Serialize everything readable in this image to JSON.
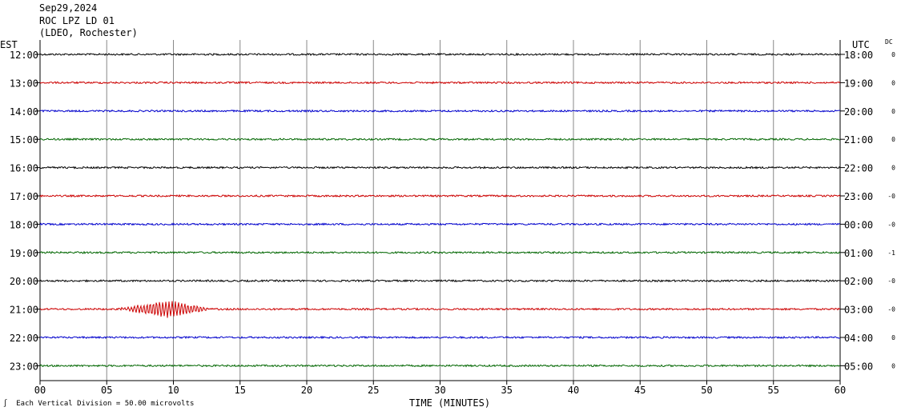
{
  "header": {
    "date": "Sep29,2024",
    "station": "ROC LPZ LD 01",
    "network": "(LDEO, Rochester)"
  },
  "left_zone": "EST",
  "right_zone": "UTC",
  "dc_label": "DC",
  "footer": {
    "scale_text": "Each Vertical Division =   50.00 microvolts"
  },
  "colors": {
    "traces": [
      "#000000",
      "#cc0000",
      "#0000cc",
      "#006600"
    ],
    "grid": "#888888",
    "axis": "#000000"
  },
  "chart_data": {
    "type": "line",
    "title": "",
    "xlabel": "TIME (MINUTES)",
    "x_ticks": [
      "00",
      "05",
      "10",
      "15",
      "20",
      "25",
      "30",
      "35",
      "40",
      "45",
      "50",
      "55",
      "60"
    ],
    "xlim": [
      0,
      60
    ],
    "grid": "vertical every 5 minutes",
    "rows": [
      {
        "est": "12:00",
        "utc": "18:00",
        "dc": "0",
        "color": "#000000"
      },
      {
        "est": "13:00",
        "utc": "19:00",
        "dc": "0",
        "color": "#cc0000"
      },
      {
        "est": "14:00",
        "utc": "20:00",
        "dc": "0",
        "color": "#0000cc"
      },
      {
        "est": "15:00",
        "utc": "21:00",
        "dc": "0",
        "color": "#006600"
      },
      {
        "est": "16:00",
        "utc": "22:00",
        "dc": "0",
        "color": "#000000"
      },
      {
        "est": "17:00",
        "utc": "23:00",
        "dc": "-0",
        "color": "#cc0000"
      },
      {
        "est": "18:00",
        "utc": "00:00",
        "dc": "-0",
        "color": "#0000cc"
      },
      {
        "est": "19:00",
        "utc": "01:00",
        "dc": "-1",
        "color": "#006600"
      },
      {
        "est": "20:00",
        "utc": "02:00",
        "dc": "-0",
        "color": "#000000"
      },
      {
        "est": "21:00",
        "utc": "03:00",
        "dc": "-0",
        "color": "#cc0000",
        "event": {
          "start_min": 5.8,
          "end_min": 13.0,
          "peak_min": 9.5,
          "peak_divisions": 0.5
        }
      },
      {
        "est": "22:00",
        "utc": "04:00",
        "dc": "0",
        "color": "#0000cc"
      },
      {
        "est": "23:00",
        "utc": "05:00",
        "dc": "0",
        "color": "#006600"
      }
    ]
  }
}
